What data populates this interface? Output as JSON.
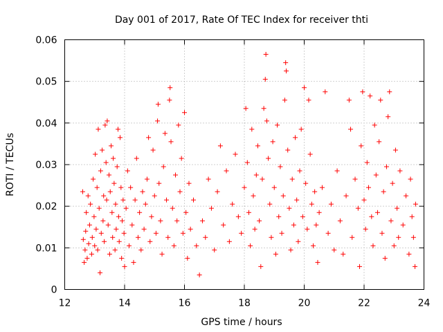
{
  "chart_data": {
    "type": "scatter",
    "title": "Day 001 of 2017, Rate Of TEC Index for receiver thti",
    "xlabel": "GPS time / hours",
    "ylabel": "ROTI / TECUs",
    "xlim": [
      12,
      24
    ],
    "ylim": [
      0,
      0.06
    ],
    "x_ticks": [
      "12",
      "14",
      "16",
      "18",
      "20",
      "22",
      "24"
    ],
    "y_ticks": [
      "0",
      "0.01",
      "0.02",
      "0.03",
      "0.04",
      "0.05",
      "0.06"
    ],
    "grid": true,
    "marker": "+",
    "series_color": "#ff0000",
    "series": [
      {
        "name": "ROTI",
        "points": [
          [
            12.6,
            0.0235
          ],
          [
            12.62,
            0.012
          ],
          [
            12.65,
            0.0065
          ],
          [
            12.68,
            0.0095
          ],
          [
            12.7,
            0.014
          ],
          [
            12.72,
            0.0185
          ],
          [
            12.75,
            0.0075
          ],
          [
            12.78,
            0.0225
          ],
          [
            12.8,
            0.011
          ],
          [
            12.83,
            0.0155
          ],
          [
            12.86,
            0.0205
          ],
          [
            12.9,
            0.0085
          ],
          [
            12.92,
            0.0125
          ],
          [
            12.95,
            0.0265
          ],
          [
            12.98,
            0.0175
          ],
          [
            13.0,
            0.0105
          ],
          [
            13.02,
            0.0325
          ],
          [
            13.05,
            0.0145
          ],
          [
            13.08,
            0.0245
          ],
          [
            13.1,
            0.0095
          ],
          [
            13.12,
            0.0385
          ],
          [
            13.15,
            0.0195
          ],
          [
            13.18,
            0.004
          ],
          [
            13.2,
            0.0285
          ],
          [
            13.22,
            0.0135
          ],
          [
            13.25,
            0.0335
          ],
          [
            13.28,
            0.0165
          ],
          [
            13.3,
            0.0225
          ],
          [
            13.32,
            0.0115
          ],
          [
            13.35,
            0.0395
          ],
          [
            13.38,
            0.0305
          ],
          [
            13.4,
            0.0215
          ],
          [
            13.42,
            0.0405
          ],
          [
            13.45,
            0.0155
          ],
          [
            13.48,
            0.0275
          ],
          [
            13.5,
            0.0085
          ],
          [
            13.52,
            0.0235
          ],
          [
            13.55,
            0.0345
          ],
          [
            13.58,
            0.0185
          ],
          [
            13.6,
            0.0125
          ],
          [
            13.62,
            0.0315
          ],
          [
            13.65,
            0.0255
          ],
          [
            13.68,
            0.0095
          ],
          [
            13.7,
            0.0205
          ],
          [
            13.72,
            0.0145
          ],
          [
            13.75,
            0.0295
          ],
          [
            13.78,
            0.0385
          ],
          [
            13.8,
            0.0175
          ],
          [
            13.82,
            0.0115
          ],
          [
            13.85,
            0.0365
          ],
          [
            13.88,
            0.0245
          ],
          [
            13.9,
            0.0075
          ],
          [
            13.92,
            0.0165
          ],
          [
            13.95,
            0.0215
          ],
          [
            13.98,
            0.0135
          ],
          [
            14.0,
            0.0055
          ],
          [
            14.05,
            0.0195
          ],
          [
            14.1,
            0.0285
          ],
          [
            14.15,
            0.0105
          ],
          [
            14.2,
            0.0245
          ],
          [
            14.25,
            0.0155
          ],
          [
            14.3,
            0.0065
          ],
          [
            14.35,
            0.0215
          ],
          [
            14.4,
            0.0315
          ],
          [
            14.45,
            0.0125
          ],
          [
            14.5,
            0.0185
          ],
          [
            14.55,
            0.0095
          ],
          [
            14.6,
            0.0235
          ],
          [
            14.65,
            0.0145
          ],
          [
            14.7,
            0.0205
          ],
          [
            14.75,
            0.0265
          ],
          [
            14.8,
            0.0365
          ],
          [
            14.85,
            0.0115
          ],
          [
            14.9,
            0.0175
          ],
          [
            14.95,
            0.0335
          ],
          [
            15.0,
            0.0225
          ],
          [
            15.05,
            0.0135
          ],
          [
            15.1,
            0.0405
          ],
          [
            15.12,
            0.0445
          ],
          [
            15.15,
            0.0255
          ],
          [
            15.2,
            0.0165
          ],
          [
            15.25,
            0.0085
          ],
          [
            15.3,
            0.0295
          ],
          [
            15.35,
            0.0375
          ],
          [
            15.4,
            0.0215
          ],
          [
            15.45,
            0.0125
          ],
          [
            15.5,
            0.0455
          ],
          [
            15.52,
            0.0485
          ],
          [
            15.55,
            0.0355
          ],
          [
            15.6,
            0.0195
          ],
          [
            15.65,
            0.0105
          ],
          [
            15.7,
            0.0275
          ],
          [
            15.75,
            0.0165
          ],
          [
            15.8,
            0.0395
          ],
          [
            15.85,
            0.0235
          ],
          [
            15.9,
            0.0315
          ],
          [
            15.95,
            0.0135
          ],
          [
            16.0,
            0.0425
          ],
          [
            16.05,
            0.0185
          ],
          [
            16.1,
            0.0075
          ],
          [
            16.15,
            0.0255
          ],
          [
            16.2,
            0.0145
          ],
          [
            16.3,
            0.0215
          ],
          [
            16.4,
            0.0105
          ],
          [
            16.5,
            0.0035
          ],
          [
            16.6,
            0.0165
          ],
          [
            16.7,
            0.0125
          ],
          [
            16.8,
            0.0265
          ],
          [
            16.9,
            0.0195
          ],
          [
            17.0,
            0.0095
          ],
          [
            17.1,
            0.0235
          ],
          [
            17.2,
            0.0345
          ],
          [
            17.3,
            0.0155
          ],
          [
            17.4,
            0.0285
          ],
          [
            17.5,
            0.0115
          ],
          [
            17.6,
            0.0205
          ],
          [
            17.7,
            0.0325
          ],
          [
            17.8,
            0.0175
          ],
          [
            17.9,
            0.0135
          ],
          [
            18.0,
            0.0245
          ],
          [
            18.05,
            0.0435
          ],
          [
            18.1,
            0.0305
          ],
          [
            18.15,
            0.0185
          ],
          [
            18.2,
            0.0105
          ],
          [
            18.25,
            0.0385
          ],
          [
            18.3,
            0.0225
          ],
          [
            18.35,
            0.0145
          ],
          [
            18.4,
            0.0275
          ],
          [
            18.45,
            0.0345
          ],
          [
            18.5,
            0.0165
          ],
          [
            18.55,
            0.0055
          ],
          [
            18.6,
            0.0265
          ],
          [
            18.65,
            0.0435
          ],
          [
            18.7,
            0.0505
          ],
          [
            18.72,
            0.0565
          ],
          [
            18.75,
            0.0405
          ],
          [
            18.8,
            0.0315
          ],
          [
            18.85,
            0.0205
          ],
          [
            18.9,
            0.0125
          ],
          [
            18.95,
            0.0355
          ],
          [
            19.0,
            0.0245
          ],
          [
            19.05,
            0.0085
          ],
          [
            19.1,
            0.0395
          ],
          [
            19.15,
            0.0175
          ],
          [
            19.2,
            0.0295
          ],
          [
            19.25,
            0.0135
          ],
          [
            19.3,
            0.0225
          ],
          [
            19.35,
            0.0455
          ],
          [
            19.38,
            0.0545
          ],
          [
            19.4,
            0.0525
          ],
          [
            19.45,
            0.0335
          ],
          [
            19.5,
            0.0195
          ],
          [
            19.55,
            0.0095
          ],
          [
            19.6,
            0.0265
          ],
          [
            19.65,
            0.0155
          ],
          [
            19.7,
            0.0365
          ],
          [
            19.75,
            0.0215
          ],
          [
            19.8,
            0.0115
          ],
          [
            19.85,
            0.0285
          ],
          [
            19.9,
            0.0385
          ],
          [
            19.95,
            0.0175
          ],
          [
            20.0,
            0.0485
          ],
          [
            20.05,
            0.0255
          ],
          [
            20.1,
            0.0145
          ],
          [
            20.15,
            0.0455
          ],
          [
            20.2,
            0.0325
          ],
          [
            20.25,
            0.0205
          ],
          [
            20.3,
            0.0105
          ],
          [
            20.35,
            0.0235
          ],
          [
            20.4,
            0.0155
          ],
          [
            20.45,
            0.0065
          ],
          [
            20.5,
            0.0185
          ],
          [
            20.6,
            0.0245
          ],
          [
            20.7,
            0.0475
          ],
          [
            20.8,
            0.0135
          ],
          [
            20.9,
            0.0205
          ],
          [
            21.0,
            0.0095
          ],
          [
            21.1,
            0.0285
          ],
          [
            21.2,
            0.0165
          ],
          [
            21.3,
            0.0085
          ],
          [
            21.4,
            0.0225
          ],
          [
            21.5,
            0.0455
          ],
          [
            21.55,
            0.0385
          ],
          [
            21.6,
            0.0125
          ],
          [
            21.7,
            0.0265
          ],
          [
            21.8,
            0.0195
          ],
          [
            21.85,
            0.0055
          ],
          [
            21.9,
            0.0345
          ],
          [
            21.95,
            0.0475
          ],
          [
            22.0,
            0.0215
          ],
          [
            22.05,
            0.0145
          ],
          [
            22.1,
            0.0305
          ],
          [
            22.15,
            0.0245
          ],
          [
            22.2,
            0.0465
          ],
          [
            22.25,
            0.0175
          ],
          [
            22.3,
            0.0105
          ],
          [
            22.35,
            0.0395
          ],
          [
            22.4,
            0.0275
          ],
          [
            22.45,
            0.0185
          ],
          [
            22.5,
            0.0355
          ],
          [
            22.55,
            0.0455
          ],
          [
            22.6,
            0.0135
          ],
          [
            22.65,
            0.0235
          ],
          [
            22.7,
            0.0075
          ],
          [
            22.75,
            0.0295
          ],
          [
            22.8,
            0.0415
          ],
          [
            22.85,
            0.0475
          ],
          [
            22.9,
            0.0165
          ],
          [
            22.95,
            0.0255
          ],
          [
            23.0,
            0.0105
          ],
          [
            23.05,
            0.0335
          ],
          [
            23.1,
            0.0195
          ],
          [
            23.15,
            0.0125
          ],
          [
            23.2,
            0.0285
          ],
          [
            23.3,
            0.0155
          ],
          [
            23.4,
            0.0225
          ],
          [
            23.5,
            0.0085
          ],
          [
            23.55,
            0.0265
          ],
          [
            23.6,
            0.0175
          ],
          [
            23.65,
            0.0125
          ],
          [
            23.7,
            0.0055
          ],
          [
            23.72,
            0.0205
          ]
        ]
      }
    ]
  }
}
